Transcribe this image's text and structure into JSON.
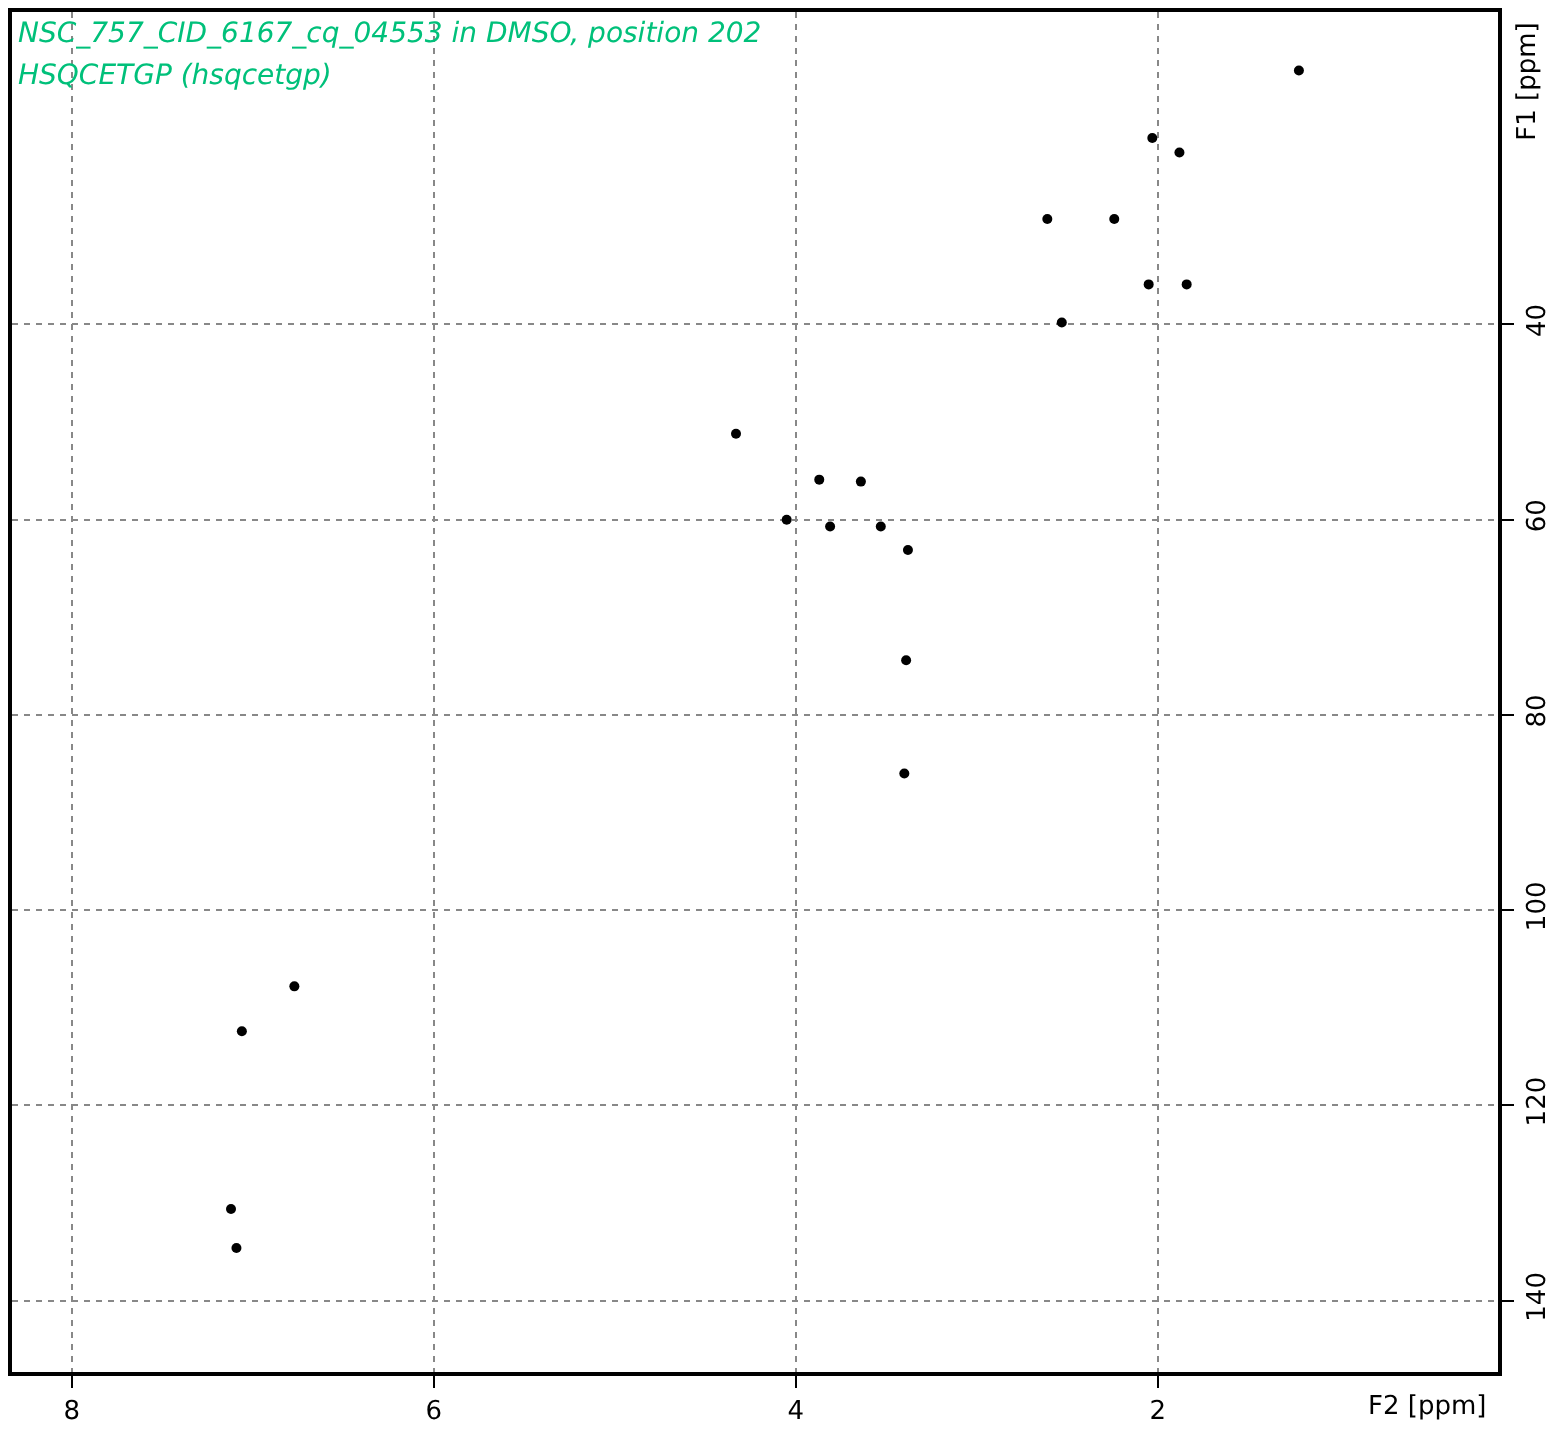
{
  "chart_data": {
    "type": "scatter",
    "title": "NSC_757_CID_6167_cq_04553 in DMSO, position 202",
    "subtitle": "HSQCETGP (hsqcetgp)",
    "xlabel": "F2 [ppm]",
    "ylabel": "F1 [ppm]",
    "x": [
      1.22,
      2.03,
      1.88,
      2.61,
      2.24,
      2.05,
      1.84,
      2.53,
      4.33,
      3.87,
      3.64,
      4.05,
      3.81,
      3.53,
      3.38,
      3.39,
      3.4,
      6.77,
      7.06,
      7.12,
      7.09
    ],
    "series": [
      {
        "color": "#000000",
        "values": [
          14.0,
          20.9,
          22.4,
          29.2,
          29.2,
          35.9,
          35.9,
          39.8,
          51.2,
          55.9,
          56.1,
          60.0,
          60.7,
          60.7,
          63.1,
          74.4,
          86.0,
          107.8,
          112.4,
          130.6,
          134.6
        ]
      }
    ],
    "xlim": [
      8.33,
      0.12
    ],
    "xticks": [
      8,
      6,
      4,
      2
    ],
    "ylim": [
      147.3,
      8
    ],
    "yticks": [
      40,
      60,
      80,
      100,
      120,
      140
    ],
    "grid": true,
    "marker": "circle"
  }
}
